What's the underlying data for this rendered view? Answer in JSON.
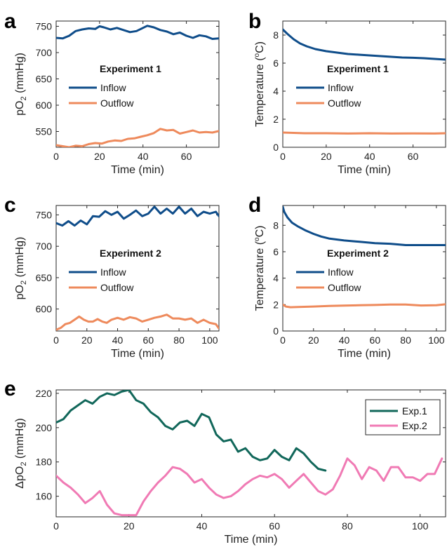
{
  "chart_data": [
    {
      "panel": "a",
      "type": "line",
      "legend_title": "Experiment 1",
      "xlabel": "Time (min)",
      "ylabel": "pO",
      "ylabel_sub": "2",
      "ylabel_unit": " (mmHg)",
      "xlim": [
        0,
        75
      ],
      "ylim": [
        520,
        760
      ],
      "xticks": [
        0,
        20,
        40,
        60
      ],
      "yticks": [
        550,
        600,
        650,
        700,
        750
      ],
      "legend_position": "center",
      "series": [
        {
          "name": "Inflow",
          "color": "#0f4d8a",
          "x": [
            0,
            3,
            6,
            9,
            12,
            15,
            18,
            20,
            22,
            25,
            28,
            31,
            34,
            37,
            40,
            42,
            45,
            48,
            51,
            54,
            57,
            60,
            63,
            66,
            69,
            72,
            75
          ],
          "y": [
            728,
            727,
            732,
            741,
            744,
            746,
            745,
            750,
            748,
            744,
            747,
            743,
            739,
            741,
            747,
            751,
            748,
            743,
            740,
            735,
            738,
            732,
            728,
            733,
            731,
            726,
            727
          ]
        },
        {
          "name": "Outflow",
          "color": "#ee8a5c",
          "x": [
            0,
            3,
            6,
            9,
            12,
            15,
            18,
            21,
            24,
            27,
            30,
            33,
            36,
            39,
            42,
            45,
            48,
            51,
            54,
            57,
            60,
            63,
            66,
            69,
            72,
            75
          ],
          "y": [
            524,
            522,
            520,
            523,
            522,
            526,
            528,
            527,
            531,
            533,
            532,
            536,
            537,
            540,
            543,
            547,
            555,
            552,
            553,
            546,
            549,
            552,
            548,
            549,
            548,
            551
          ]
        }
      ]
    },
    {
      "panel": "b",
      "type": "line",
      "legend_title": "Experiment 1",
      "xlabel": "Time (min)",
      "ylabel": "Temperature (",
      "ylabel_sup": "o",
      "ylabel_unit": "C)",
      "xlim": [
        0,
        75
      ],
      "ylim": [
        0,
        9
      ],
      "xticks": [
        0,
        20,
        40,
        60
      ],
      "yticks": [
        0,
        2,
        4,
        6,
        8
      ],
      "legend_position": "center",
      "series": [
        {
          "name": "Inflow",
          "color": "#0f4d8a",
          "x": [
            0,
            2,
            5,
            8,
            11,
            15,
            20,
            25,
            30,
            35,
            40,
            45,
            50,
            55,
            60,
            65,
            70,
            75
          ],
          "y": [
            8.4,
            8.1,
            7.7,
            7.4,
            7.2,
            7.0,
            6.85,
            6.75,
            6.65,
            6.6,
            6.55,
            6.5,
            6.45,
            6.4,
            6.38,
            6.35,
            6.3,
            6.25
          ]
        },
        {
          "name": "Outflow",
          "color": "#ee8a5c",
          "x": [
            0,
            10,
            20,
            30,
            40,
            50,
            60,
            70,
            75
          ],
          "y": [
            1.05,
            1.0,
            1.0,
            0.98,
            1.0,
            0.98,
            0.99,
            0.98,
            1.0
          ]
        }
      ]
    },
    {
      "panel": "c",
      "type": "line",
      "legend_title": "Experiment 2",
      "xlabel": "Time (min)",
      "ylabel": "pO",
      "ylabel_sub": "2",
      "ylabel_unit": " (mmHg)",
      "xlim": [
        0,
        106
      ],
      "ylim": [
        565,
        765
      ],
      "xticks": [
        0,
        20,
        40,
        60,
        80,
        100
      ],
      "yticks": [
        600,
        650,
        700,
        750
      ],
      "legend_position": "center",
      "series": [
        {
          "name": "Inflow",
          "color": "#0f4d8a",
          "x": [
            0,
            4,
            8,
            12,
            16,
            20,
            24,
            28,
            32,
            36,
            40,
            44,
            48,
            52,
            56,
            60,
            64,
            68,
            72,
            76,
            80,
            84,
            88,
            92,
            96,
            100,
            104,
            106
          ],
          "y": [
            737,
            733,
            740,
            733,
            741,
            735,
            748,
            747,
            756,
            750,
            755,
            744,
            750,
            757,
            748,
            752,
            763,
            752,
            760,
            752,
            763,
            752,
            760,
            748,
            755,
            752,
            755,
            748
          ]
        },
        {
          "name": "Outflow",
          "color": "#ee8a5c",
          "x": [
            0,
            3,
            6,
            9,
            12,
            15,
            18,
            21,
            24,
            27,
            30,
            33,
            36,
            40,
            44,
            48,
            52,
            56,
            60,
            64,
            68,
            72,
            76,
            80,
            84,
            88,
            92,
            96,
            100,
            104,
            106
          ],
          "y": [
            567,
            570,
            576,
            578,
            583,
            588,
            583,
            580,
            580,
            584,
            580,
            578,
            583,
            586,
            583,
            587,
            585,
            580,
            583,
            586,
            588,
            591,
            585,
            585,
            583,
            585,
            578,
            583,
            578,
            576,
            569
          ]
        }
      ]
    },
    {
      "panel": "d",
      "type": "line",
      "legend_title": "Experiment 2",
      "xlabel": "Time (min)",
      "ylabel": "Temperature (",
      "ylabel_sup": "o",
      "ylabel_unit": "C)",
      "xlim": [
        0,
        106
      ],
      "ylim": [
        0,
        9.5
      ],
      "xticks": [
        0,
        20,
        40,
        60,
        80,
        100
      ],
      "yticks": [
        0,
        2,
        4,
        6,
        8
      ],
      "legend_position": "center",
      "series": [
        {
          "name": "Inflow",
          "color": "#0f4d8a",
          "x": [
            0,
            1,
            3,
            6,
            10,
            15,
            20,
            25,
            30,
            40,
            50,
            60,
            70,
            80,
            90,
            100,
            106
          ],
          "y": [
            9.4,
            9.0,
            8.6,
            8.2,
            7.9,
            7.6,
            7.35,
            7.15,
            7.0,
            6.85,
            6.75,
            6.65,
            6.6,
            6.5,
            6.5,
            6.5,
            6.5
          ]
        },
        {
          "name": "Outflow",
          "color": "#ee8a5c",
          "x": [
            0,
            2,
            5,
            10,
            20,
            30,
            40,
            50,
            60,
            70,
            80,
            90,
            100,
            106
          ],
          "y": [
            2.0,
            1.85,
            1.8,
            1.82,
            1.85,
            1.9,
            1.92,
            1.95,
            1.97,
            2.0,
            2.0,
            1.93,
            1.95,
            2.02
          ]
        }
      ]
    },
    {
      "panel": "e",
      "type": "line",
      "xlabel": "Time (min)",
      "ylabel": "ΔpO",
      "ylabel_sub": "2",
      "ylabel_unit": " (mmHg)",
      "xlim": [
        0,
        107
      ],
      "ylim": [
        148,
        222
      ],
      "xticks": [
        0,
        20,
        40,
        60,
        80,
        100
      ],
      "yticks": [
        160,
        180,
        200,
        220
      ],
      "legend_position": "top-right",
      "legend_boxed": true,
      "series": [
        {
          "name": "Exp.1",
          "color": "#11675a",
          "x": [
            0,
            2,
            4,
            6,
            8,
            10,
            12,
            14,
            16,
            18,
            20,
            22,
            24,
            26,
            28,
            30,
            32,
            34,
            36,
            38,
            40,
            42,
            44,
            46,
            48,
            50,
            52,
            54,
            56,
            58,
            60,
            62,
            64,
            66,
            68,
            70,
            72,
            74
          ],
          "y": [
            203,
            205,
            210,
            213,
            216,
            214,
            218,
            220,
            219,
            221,
            222,
            216,
            214,
            209,
            206,
            201,
            199,
            203,
            204,
            201,
            208,
            206,
            196,
            192,
            193,
            186,
            188,
            183,
            181,
            182,
            187,
            183,
            181,
            188,
            185,
            180,
            176,
            175
          ]
        },
        {
          "name": "Exp.2",
          "color": "#f07ab4",
          "x": [
            0,
            2,
            4,
            6,
            8,
            10,
            12,
            14,
            16,
            18,
            20,
            22,
            24,
            26,
            28,
            30,
            32,
            34,
            36,
            38,
            40,
            42,
            44,
            46,
            48,
            50,
            52,
            54,
            56,
            58,
            60,
            62,
            64,
            66,
            68,
            70,
            72,
            74,
            76,
            78,
            80,
            82,
            84,
            86,
            88,
            90,
            92,
            94,
            96,
            98,
            100,
            102,
            104,
            106
          ],
          "y": [
            172,
            168,
            165,
            161,
            156,
            159,
            163,
            155,
            150,
            149,
            149,
            149,
            157,
            163,
            168,
            172,
            177,
            176,
            173,
            168,
            170,
            165,
            161,
            159,
            160,
            163,
            167,
            170,
            172,
            171,
            173,
            170,
            165,
            169,
            173,
            168,
            163,
            161,
            164,
            172,
            182,
            178,
            170,
            177,
            175,
            169,
            177,
            177,
            171,
            171,
            169,
            173,
            173,
            182
          ]
        }
      ]
    }
  ]
}
